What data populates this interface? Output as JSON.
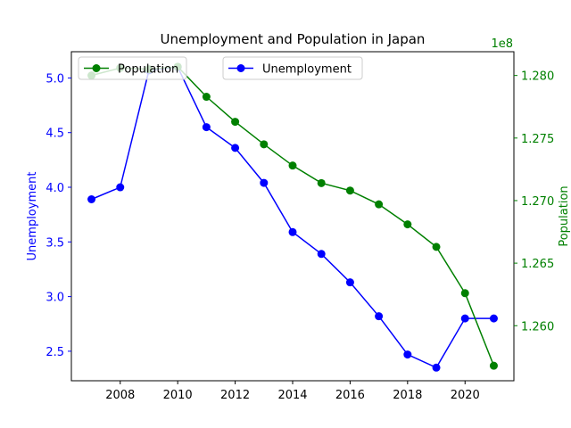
{
  "chart_data": {
    "type": "line",
    "title": "Unemployment and Population in Japan",
    "x": [
      2007,
      2008,
      2009,
      2010,
      2011,
      2012,
      2013,
      2014,
      2015,
      2016,
      2017,
      2018,
      2019,
      2020,
      2021
    ],
    "xlabel": "",
    "xlim": [
      2006.3,
      2021.7
    ],
    "xticks": [
      2008,
      2010,
      2012,
      2014,
      2016,
      2018,
      2020
    ],
    "grid": false,
    "series": [
      {
        "name": "Unemployment",
        "axis": "left",
        "color": "#0000ff",
        "values": [
          3.89,
          4.0,
          5.07,
          5.1,
          4.55,
          4.36,
          4.04,
          3.59,
          3.39,
          3.13,
          2.82,
          2.47,
          2.35,
          2.8,
          2.8
        ]
      },
      {
        "name": "Population",
        "axis": "right",
        "color": "#008000",
        "values": [
          128000000,
          128060000,
          128050000,
          128070000,
          127830000,
          127630000,
          127450000,
          127280000,
          127140000,
          127080000,
          126970000,
          126810000,
          126630000,
          126260000,
          125680000
        ]
      }
    ],
    "y_left": {
      "label": "Unemployment",
      "color": "#0000ff",
      "ylim": [
        2.23,
        5.24
      ],
      "ticks": [
        2.5,
        3.0,
        3.5,
        4.0,
        4.5,
        5.0
      ],
      "tick_labels": [
        "2.5",
        "3.0",
        "3.5",
        "4.0",
        "4.5",
        "5.0"
      ]
    },
    "y_right": {
      "label": "Population",
      "color": "#008000",
      "ylim": [
        125560000,
        128190000
      ],
      "ticks": [
        126000000,
        126500000,
        127000000,
        127500000,
        128000000
      ],
      "tick_labels": [
        "1.260",
        "1.265",
        "1.270",
        "1.275",
        "1.280"
      ],
      "offset_label": "1e8"
    },
    "legends": [
      {
        "placement": "upper-left",
        "entries": [
          "Population"
        ]
      },
      {
        "placement": "upper-center",
        "entries": [
          "Unemployment"
        ]
      }
    ]
  }
}
